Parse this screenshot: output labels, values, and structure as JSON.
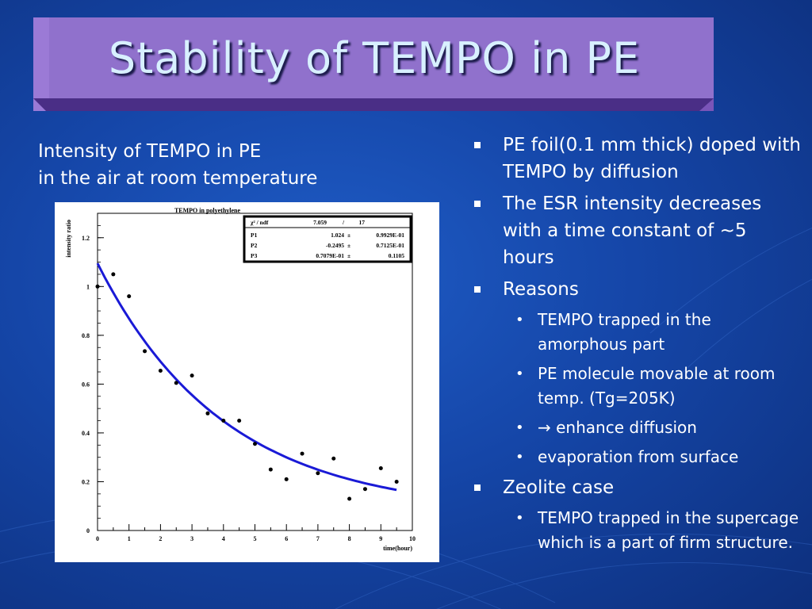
{
  "title": "Stability of TEMPO in PE",
  "caption": {
    "line1": "Intensity of TEMPO in PE",
    "line2": "in the air at room temperature"
  },
  "bullets": [
    {
      "text": "PE foil(0.1 mm thick) doped with TEMPO by diffusion",
      "sub": []
    },
    {
      "text": "The ESR intensity decreases with a time constant of ~5 hours",
      "sub": []
    },
    {
      "text": "Reasons",
      "sub": [
        "TEMPO trapped in the amorphous part",
        "PE molecule movable at room temp. (Tg=205K)",
        "→ enhance diffusion",
        "evaporation from surface"
      ]
    },
    {
      "text": "Zeolite case",
      "sub": [
        "TEMPO trapped in the supercage which is a part of firm structure."
      ]
    }
  ],
  "chart_data": {
    "type": "scatter",
    "title": "TEMPO in polyethylene",
    "xlabel": "time(hour)",
    "ylabel": "intensity ratio",
    "xlim": [
      0,
      10
    ],
    "ylim": [
      0,
      1.3
    ],
    "xticks": [
      "0",
      "1",
      "2",
      "3",
      "4",
      "5",
      "6",
      "7",
      "8",
      "9",
      "10"
    ],
    "yticks": [
      "0",
      "0.2",
      "0.4",
      "0.6",
      "0.8",
      "1",
      "1.2"
    ],
    "points": {
      "x": [
        0,
        0.5,
        1,
        1.5,
        2,
        2.5,
        3,
        3.5,
        4,
        4.5,
        5,
        5.5,
        6,
        6.5,
        7,
        7.5,
        8,
        8.5,
        9,
        9.5
      ],
      "y": [
        1.0,
        1.05,
        0.96,
        0.735,
        0.655,
        0.605,
        0.635,
        0.48,
        0.45,
        0.45,
        0.355,
        0.25,
        0.21,
        0.315,
        0.235,
        0.295,
        0.13,
        0.17,
        0.255,
        0.2
      ]
    },
    "fit": {
      "p1": 1.024,
      "p2": -0.2495,
      "p3": 0.07079,
      "x_range": [
        0,
        9.5
      ],
      "color": "#1a1ad6"
    },
    "stats": {
      "header": {
        "label": "χ² / ndf",
        "value": "7.059",
        "sep": "/",
        "ndf": "17"
      },
      "rows": [
        {
          "name": "P1",
          "value": "1.024",
          "pm": "±",
          "err": "0.9929E-01"
        },
        {
          "name": "P2",
          "value": "-0.2495",
          "pm": "±",
          "err": "0.7125E-01"
        },
        {
          "name": "P3",
          "value": "0.7079E-01",
          "pm": "±",
          "err": "0.1105"
        }
      ]
    }
  }
}
